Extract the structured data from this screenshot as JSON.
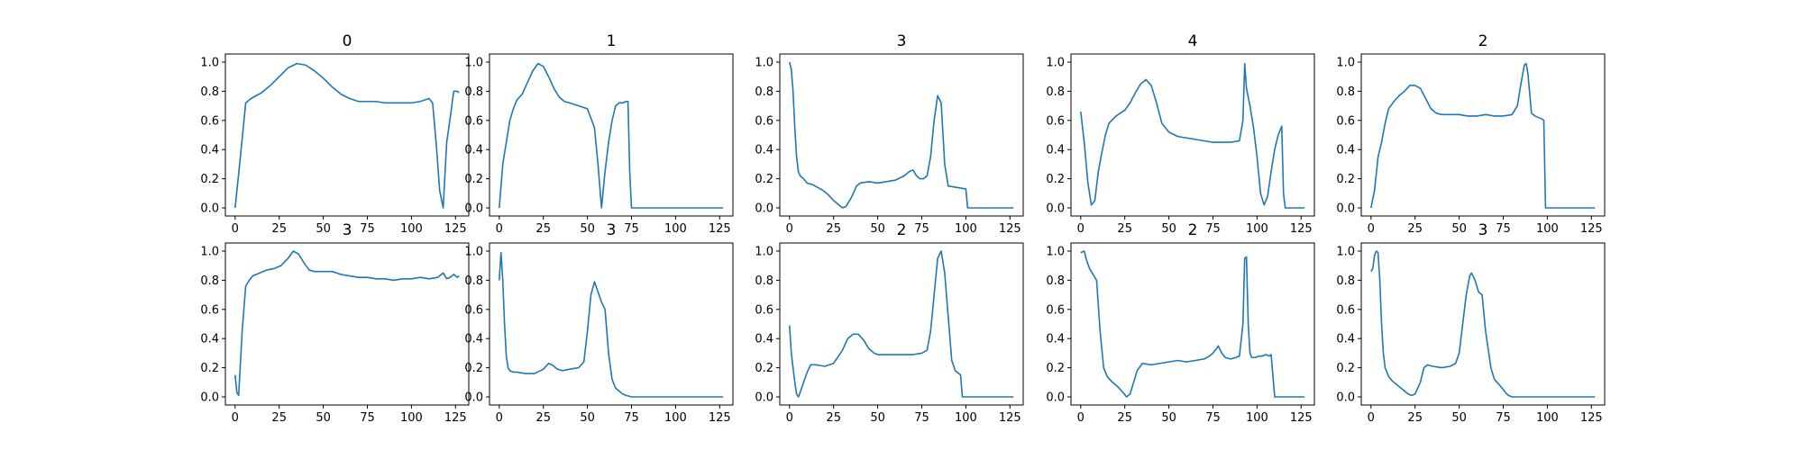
{
  "figure": {
    "colors": {
      "line": "#1f77b4",
      "axes": "#000000",
      "background": "#ffffff"
    }
  },
  "chart_data": [
    {
      "type": "line",
      "title": "0",
      "xlabel": "",
      "ylabel": "",
      "xlim": [
        0,
        127
      ],
      "ylim": [
        0,
        1
      ],
      "xticks": [
        "0",
        "25",
        "50",
        "75",
        "100",
        "125"
      ],
      "yticks": [
        "0.0",
        "0.2",
        "0.4",
        "0.6",
        "0.8",
        "1.0"
      ],
      "grid": false,
      "series": [
        {
          "x": [
            0,
            3,
            6,
            9,
            12,
            15,
            20,
            25,
            30,
            35,
            40,
            45,
            50,
            55,
            60,
            65,
            70,
            75,
            80,
            85,
            90,
            95,
            100,
            105,
            110,
            112,
            114,
            116,
            118,
            120,
            122,
            124,
            126,
            127
          ],
          "y": [
            0.0,
            0.35,
            0.72,
            0.75,
            0.77,
            0.79,
            0.84,
            0.9,
            0.96,
            0.99,
            0.98,
            0.94,
            0.89,
            0.83,
            0.78,
            0.75,
            0.73,
            0.73,
            0.73,
            0.72,
            0.72,
            0.72,
            0.72,
            0.73,
            0.75,
            0.72,
            0.45,
            0.12,
            0.0,
            0.45,
            0.62,
            0.8,
            0.8,
            0.79
          ]
        }
      ]
    },
    {
      "type": "line",
      "title": "1",
      "xlabel": "",
      "ylabel": "",
      "xlim": [
        0,
        127
      ],
      "ylim": [
        0,
        1
      ],
      "xticks": [
        "0",
        "25",
        "50",
        "75",
        "100",
        "125"
      ],
      "yticks": [
        "0.0",
        "0.2",
        "0.4",
        "0.6",
        "0.8",
        "1.0"
      ],
      "grid": false,
      "series": [
        {
          "x": [
            0,
            2,
            4,
            6,
            8,
            10,
            13,
            16,
            19,
            22,
            25,
            28,
            31,
            34,
            37,
            40,
            45,
            50,
            54,
            56,
            58,
            60,
            62,
            64,
            66,
            68,
            70,
            72,
            73,
            74,
            75,
            80,
            90,
            100,
            110,
            120,
            127
          ],
          "y": [
            0.0,
            0.3,
            0.45,
            0.6,
            0.68,
            0.74,
            0.78,
            0.86,
            0.94,
            0.99,
            0.97,
            0.9,
            0.82,
            0.76,
            0.73,
            0.72,
            0.7,
            0.68,
            0.55,
            0.3,
            0.0,
            0.25,
            0.45,
            0.6,
            0.7,
            0.72,
            0.72,
            0.73,
            0.73,
            0.25,
            0.0,
            0.0,
            0.0,
            0.0,
            0.0,
            0.0,
            0.0
          ]
        }
      ]
    },
    {
      "type": "line",
      "title": "3",
      "xlabel": "",
      "ylabel": "",
      "xlim": [
        0,
        127
      ],
      "ylim": [
        0,
        1
      ],
      "xticks": [
        "0",
        "25",
        "50",
        "75",
        "100",
        "125"
      ],
      "yticks": [
        "0.0",
        "0.2",
        "0.4",
        "0.6",
        "0.8",
        "1.0"
      ],
      "grid": false,
      "series": [
        {
          "x": [
            0,
            1,
            2,
            3,
            4,
            5,
            6,
            8,
            10,
            13,
            16,
            19,
            22,
            25,
            28,
            30,
            32,
            35,
            38,
            40,
            45,
            50,
            55,
            60,
            65,
            68,
            70,
            72,
            74,
            76,
            78,
            80,
            82,
            84,
            86,
            88,
            90,
            95,
            100,
            101,
            105,
            110,
            120,
            127
          ],
          "y": [
            1.0,
            0.95,
            0.8,
            0.55,
            0.35,
            0.25,
            0.22,
            0.2,
            0.17,
            0.16,
            0.14,
            0.12,
            0.09,
            0.05,
            0.02,
            0.0,
            0.01,
            0.07,
            0.15,
            0.17,
            0.18,
            0.17,
            0.18,
            0.19,
            0.22,
            0.25,
            0.26,
            0.22,
            0.2,
            0.2,
            0.22,
            0.35,
            0.6,
            0.77,
            0.72,
            0.3,
            0.15,
            0.14,
            0.13,
            0.0,
            0.0,
            0.0,
            0.0,
            0.0
          ]
        }
      ]
    },
    {
      "type": "line",
      "title": "4",
      "xlabel": "",
      "ylabel": "",
      "xlim": [
        0,
        127
      ],
      "ylim": [
        0,
        1
      ],
      "xticks": [
        "0",
        "25",
        "50",
        "75",
        "100",
        "125"
      ],
      "yticks": [
        "0.0",
        "0.2",
        "0.4",
        "0.6",
        "0.8",
        "1.0"
      ],
      "grid": false,
      "series": [
        {
          "x": [
            0,
            2,
            4,
            6,
            8,
            10,
            12,
            14,
            16,
            20,
            25,
            28,
            31,
            34,
            37,
            40,
            43,
            46,
            50,
            55,
            60,
            65,
            70,
            75,
            80,
            85,
            90,
            92,
            93,
            94,
            96,
            98,
            100,
            102,
            104,
            106,
            108,
            110,
            112,
            114,
            115,
            116,
            120,
            127
          ],
          "y": [
            0.66,
            0.45,
            0.18,
            0.02,
            0.05,
            0.25,
            0.38,
            0.5,
            0.58,
            0.63,
            0.67,
            0.72,
            0.79,
            0.85,
            0.88,
            0.84,
            0.72,
            0.58,
            0.52,
            0.49,
            0.48,
            0.47,
            0.46,
            0.45,
            0.45,
            0.45,
            0.46,
            0.6,
            0.99,
            0.82,
            0.7,
            0.55,
            0.35,
            0.1,
            0.02,
            0.08,
            0.25,
            0.4,
            0.5,
            0.56,
            0.1,
            0.0,
            0.0,
            0.0
          ]
        }
      ]
    },
    {
      "type": "line",
      "title": "2",
      "xlabel": "",
      "ylabel": "",
      "xlim": [
        0,
        127
      ],
      "ylim": [
        0,
        1
      ],
      "xticks": [
        "0",
        "25",
        "50",
        "75",
        "100",
        "125"
      ],
      "yticks": [
        "0.0",
        "0.2",
        "0.4",
        "0.6",
        "0.8",
        "1.0"
      ],
      "grid": false,
      "series": [
        {
          "x": [
            0,
            2,
            4,
            6,
            8,
            10,
            13,
            16,
            19,
            22,
            25,
            28,
            31,
            34,
            37,
            40,
            45,
            50,
            55,
            60,
            65,
            70,
            75,
            80,
            83,
            85,
            87,
            88,
            89,
            91,
            93,
            95,
            97,
            98,
            99,
            100,
            105,
            110,
            120,
            127
          ],
          "y": [
            0.0,
            0.12,
            0.35,
            0.45,
            0.58,
            0.68,
            0.73,
            0.77,
            0.8,
            0.84,
            0.84,
            0.82,
            0.75,
            0.68,
            0.65,
            0.64,
            0.64,
            0.64,
            0.63,
            0.63,
            0.64,
            0.63,
            0.63,
            0.64,
            0.7,
            0.85,
            0.98,
            0.99,
            0.92,
            0.65,
            0.63,
            0.62,
            0.61,
            0.6,
            0.0,
            0.0,
            0.0,
            0.0,
            0.0,
            0.0
          ]
        }
      ]
    },
    {
      "type": "line",
      "title": "3",
      "xlabel": "",
      "ylabel": "",
      "xlim": [
        0,
        127
      ],
      "ylim": [
        0,
        1
      ],
      "xticks": [
        "0",
        "25",
        "50",
        "75",
        "100",
        "125"
      ],
      "yticks": [
        "0.0",
        "0.2",
        "0.4",
        "0.6",
        "0.8",
        "1.0"
      ],
      "grid": false,
      "series": [
        {
          "x": [
            0,
            1,
            2,
            4,
            6,
            8,
            10,
            14,
            18,
            22,
            26,
            30,
            33,
            36,
            39,
            42,
            45,
            50,
            55,
            60,
            65,
            70,
            75,
            80,
            85,
            90,
            95,
            100,
            105,
            110,
            115,
            118,
            120,
            122,
            124,
            126,
            127
          ],
          "y": [
            0.15,
            0.03,
            0.01,
            0.45,
            0.76,
            0.8,
            0.83,
            0.85,
            0.87,
            0.88,
            0.9,
            0.95,
            1.0,
            0.98,
            0.92,
            0.87,
            0.86,
            0.86,
            0.86,
            0.84,
            0.83,
            0.82,
            0.82,
            0.81,
            0.81,
            0.8,
            0.81,
            0.81,
            0.82,
            0.81,
            0.82,
            0.85,
            0.81,
            0.82,
            0.84,
            0.82,
            0.83
          ]
        }
      ]
    },
    {
      "type": "line",
      "title": "3",
      "xlabel": "",
      "ylabel": "",
      "xlim": [
        0,
        127
      ],
      "ylim": [
        0,
        1
      ],
      "xticks": [
        "0",
        "25",
        "50",
        "75",
        "100",
        "125"
      ],
      "yticks": [
        "0.0",
        "0.2",
        "0.4",
        "0.6",
        "0.8",
        "1.0"
      ],
      "grid": false,
      "series": [
        {
          "x": [
            0,
            1,
            2,
            3,
            4,
            5,
            6,
            8,
            10,
            15,
            20,
            25,
            28,
            30,
            33,
            36,
            40,
            45,
            48,
            50,
            52,
            54,
            56,
            58,
            60,
            62,
            64,
            66,
            68,
            70,
            72,
            75,
            80,
            90,
            100,
            110,
            120,
            127
          ],
          "y": [
            0.8,
            0.99,
            0.8,
            0.5,
            0.28,
            0.2,
            0.18,
            0.17,
            0.17,
            0.16,
            0.16,
            0.19,
            0.23,
            0.22,
            0.19,
            0.18,
            0.19,
            0.2,
            0.24,
            0.45,
            0.7,
            0.79,
            0.72,
            0.65,
            0.6,
            0.3,
            0.12,
            0.06,
            0.04,
            0.02,
            0.01,
            0.0,
            0.0,
            0.0,
            0.0,
            0.0,
            0.0,
            0.0
          ]
        }
      ]
    },
    {
      "type": "line",
      "title": "2",
      "xlabel": "",
      "ylabel": "",
      "xlim": [
        0,
        127
      ],
      "ylim": [
        0,
        1
      ],
      "xticks": [
        "0",
        "25",
        "50",
        "75",
        "100",
        "125"
      ],
      "yticks": [
        "0.0",
        "0.2",
        "0.4",
        "0.6",
        "0.8",
        "1.0"
      ],
      "grid": false,
      "series": [
        {
          "x": [
            0,
            1,
            2,
            3,
            4,
            5,
            6,
            8,
            10,
            12,
            15,
            20,
            25,
            30,
            33,
            36,
            39,
            42,
            45,
            48,
            50,
            55,
            60,
            65,
            70,
            75,
            78,
            80,
            82,
            84,
            86,
            88,
            90,
            92,
            94,
            95,
            96,
            97,
            98,
            100,
            110,
            120,
            127
          ],
          "y": [
            0.49,
            0.3,
            0.2,
            0.1,
            0.02,
            0.0,
            0.03,
            0.1,
            0.17,
            0.22,
            0.22,
            0.21,
            0.23,
            0.32,
            0.4,
            0.43,
            0.43,
            0.39,
            0.33,
            0.3,
            0.29,
            0.29,
            0.29,
            0.29,
            0.29,
            0.3,
            0.32,
            0.45,
            0.7,
            0.95,
            1.0,
            0.85,
            0.55,
            0.25,
            0.18,
            0.17,
            0.16,
            0.15,
            0.0,
            0.0,
            0.0,
            0.0,
            0.0
          ]
        }
      ]
    },
    {
      "type": "line",
      "title": "2",
      "xlabel": "",
      "ylabel": "",
      "xlim": [
        0,
        127
      ],
      "ylim": [
        0,
        1
      ],
      "xticks": [
        "0",
        "25",
        "50",
        "75",
        "100",
        "125"
      ],
      "yticks": [
        "0.0",
        "0.2",
        "0.4",
        "0.6",
        "0.8",
        "1.0"
      ],
      "grid": false,
      "series": [
        {
          "x": [
            0,
            2,
            3,
            5,
            7,
            9,
            11,
            13,
            15,
            18,
            21,
            24,
            26,
            28,
            30,
            32,
            35,
            40,
            45,
            50,
            55,
            60,
            65,
            70,
            73,
            75,
            77,
            78,
            80,
            82,
            85,
            88,
            90,
            92,
            93,
            94,
            95,
            96,
            97,
            99,
            101,
            103,
            105,
            107,
            108,
            110,
            120,
            127
          ],
          "y": [
            0.99,
            1.0,
            0.95,
            0.88,
            0.84,
            0.8,
            0.45,
            0.2,
            0.14,
            0.1,
            0.07,
            0.03,
            0.0,
            0.02,
            0.1,
            0.18,
            0.23,
            0.22,
            0.23,
            0.24,
            0.25,
            0.24,
            0.25,
            0.26,
            0.28,
            0.3,
            0.33,
            0.35,
            0.3,
            0.27,
            0.26,
            0.27,
            0.28,
            0.5,
            0.95,
            0.96,
            0.5,
            0.3,
            0.27,
            0.27,
            0.28,
            0.28,
            0.29,
            0.28,
            0.29,
            0.0,
            0.0,
            0.0
          ]
        }
      ]
    },
    {
      "type": "line",
      "title": "3",
      "xlabel": "",
      "ylabel": "",
      "xlim": [
        0,
        127
      ],
      "ylim": [
        0,
        1
      ],
      "xticks": [
        "0",
        "25",
        "50",
        "75",
        "100",
        "125"
      ],
      "yticks": [
        "0.0",
        "0.2",
        "0.4",
        "0.6",
        "0.8",
        "1.0"
      ],
      "grid": false,
      "series": [
        {
          "x": [
            0,
            1,
            2,
            3,
            4,
            5,
            6,
            7,
            8,
            10,
            12,
            15,
            18,
            21,
            23,
            25,
            28,
            30,
            32,
            35,
            40,
            45,
            48,
            50,
            52,
            54,
            56,
            57,
            59,
            61,
            63,
            65,
            68,
            70,
            73,
            75,
            77,
            78,
            80,
            90,
            100,
            110,
            120,
            127
          ],
          "y": [
            0.86,
            0.88,
            0.97,
            1.0,
            0.99,
            0.8,
            0.5,
            0.3,
            0.2,
            0.14,
            0.11,
            0.08,
            0.05,
            0.02,
            0.01,
            0.02,
            0.1,
            0.2,
            0.22,
            0.21,
            0.2,
            0.21,
            0.23,
            0.3,
            0.5,
            0.7,
            0.83,
            0.85,
            0.8,
            0.72,
            0.7,
            0.45,
            0.2,
            0.12,
            0.08,
            0.05,
            0.02,
            0.01,
            0.0,
            0.0,
            0.0,
            0.0,
            0.0,
            0.0
          ]
        }
      ]
    }
  ]
}
